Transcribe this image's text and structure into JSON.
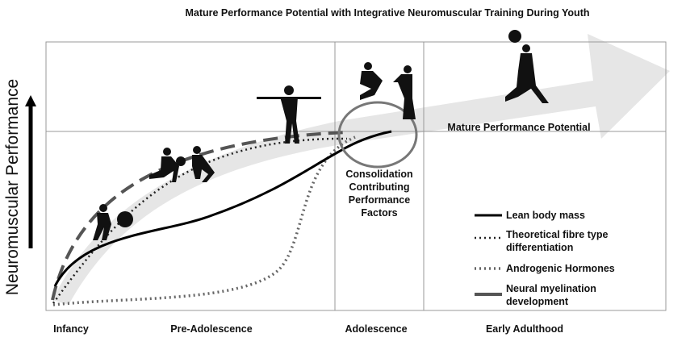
{
  "title": "Mature Performance Potential with Integrative Neuromuscular Training During Youth",
  "y_axis_label": "Neuromuscular Performance",
  "stages": [
    "Infancy",
    "Pre-Adolescence",
    "Adolescence",
    "Early Adulthood"
  ],
  "annotations": {
    "mature": "Mature Performance Potential",
    "consolidation": [
      "Consolidation",
      "Contributing",
      "Performance",
      "Factors"
    ]
  },
  "legend": [
    {
      "lines": [
        "Lean body mass"
      ]
    },
    {
      "lines": [
        "Theoretical fibre type",
        "differentiation"
      ]
    },
    {
      "lines": [
        "Androgenic Hormones"
      ]
    },
    {
      "lines": [
        "Neural myelination",
        "development"
      ]
    }
  ]
}
